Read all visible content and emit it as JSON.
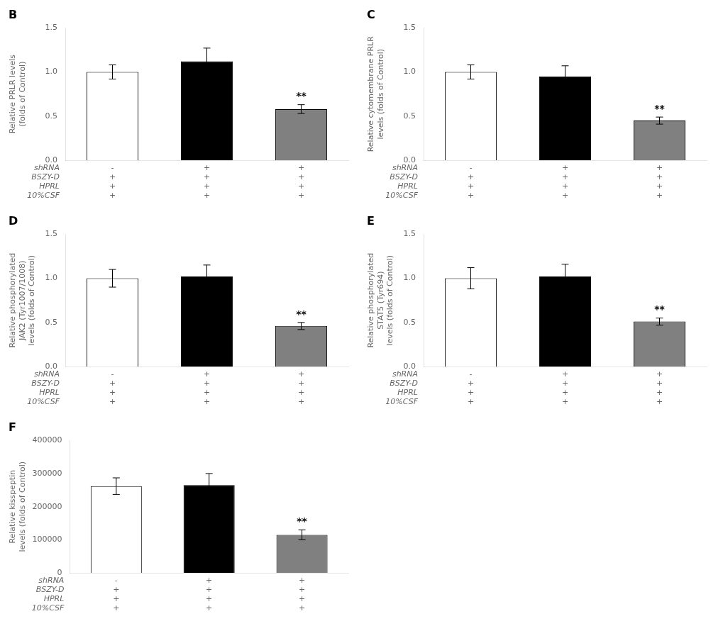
{
  "chart_data": [
    {
      "type": "bar",
      "title": "B",
      "categories": [
        [
          "-",
          "+",
          "+",
          "+"
        ],
        [
          "+",
          "+",
          "+",
          "+"
        ],
        [
          "+",
          "+",
          "+",
          "+"
        ]
      ],
      "row_labels": [
        "shRNA",
        "BSZY-D",
        "HPRL",
        "10%CSF"
      ],
      "values": [
        1.0,
        1.12,
        0.58
      ],
      "errors": [
        0.08,
        0.15,
        0.05
      ],
      "colors": [
        "white",
        "black",
        "#808080"
      ],
      "y_label": "Relative PRLR levels\n(folds of Control)",
      "ylim": [
        0,
        1.5
      ],
      "yticks": [
        {
          "value": 0,
          "label": "0.0"
        },
        0.5,
        {
          "value": 1,
          "label": "1.0"
        },
        1.5
      ],
      "annotations": [
        {
          "text": "**",
          "category": 2
        }
      ],
      "grid": false
    },
    {
      "type": "bar",
      "title": "C",
      "categories": [
        [
          "-",
          "+",
          "+",
          "+"
        ],
        [
          "+",
          "+",
          "+",
          "+"
        ],
        [
          "+",
          "+",
          "+",
          "+"
        ]
      ],
      "row_labels": [
        "shRNA",
        "BSZY-D",
        "HPRL",
        "10%CSF"
      ],
      "values": [
        1.0,
        0.95,
        0.45
      ],
      "errors": [
        0.08,
        0.12,
        0.04
      ],
      "colors": [
        "white",
        "black",
        "#808080"
      ],
      "y_label": "Relative cytomembrane PRLR\nlevels (folds of Control)",
      "ylim": [
        0,
        1.5
      ],
      "yticks": [
        {
          "value": 0,
          "label": "0.0"
        },
        0.5,
        {
          "value": 1,
          "label": "1.0"
        },
        1.5
      ],
      "annotations": [
        {
          "text": "**",
          "category": 2
        }
      ],
      "grid": false
    },
    {
      "type": "bar",
      "title": "D",
      "categories": [
        [
          "-",
          "+",
          "+",
          "+"
        ],
        [
          "+",
          "+",
          "+",
          "+"
        ],
        [
          "+",
          "+",
          "+",
          "+"
        ]
      ],
      "row_labels": [
        "shRNA",
        "BSZY-D",
        "HPRL",
        "10%CSF"
      ],
      "values": [
        1.0,
        1.02,
        0.46
      ],
      "errors": [
        0.1,
        0.13,
        0.04
      ],
      "colors": [
        "white",
        "black",
        "#808080"
      ],
      "y_label": "Relative phosphorylated\nJAK2 (Tyr1007/1008)\nlevels (folds of Control)",
      "ylim": [
        0,
        1.5
      ],
      "yticks": [
        {
          "value": 0,
          "label": "0.0"
        },
        0.5,
        {
          "value": 1,
          "label": "1.0"
        },
        1.5
      ],
      "annotations": [
        {
          "text": "**",
          "category": 2
        }
      ],
      "grid": false
    },
    {
      "type": "bar",
      "title": "E",
      "categories": [
        [
          "-",
          "+",
          "+",
          "+"
        ],
        [
          "+",
          "+",
          "+",
          "+"
        ],
        [
          "+",
          "+",
          "+",
          "+"
        ]
      ],
      "row_labels": [
        "shRNA",
        "BSZY-D",
        "HPRL",
        "10%CSF"
      ],
      "values": [
        1.0,
        1.02,
        0.51
      ],
      "errors": [
        0.12,
        0.14,
        0.04
      ],
      "colors": [
        "white",
        "black",
        "#808080"
      ],
      "y_label": "Relative phosphorylated\nSTAT5 (Tyr694)\nlevels (folds of Control)",
      "ylim": [
        0,
        1.5
      ],
      "yticks": [
        {
          "value": 0,
          "label": "0.0"
        },
        0.5,
        {
          "value": 1,
          "label": "1.0"
        },
        1.5
      ],
      "annotations": [
        {
          "text": "**",
          "category": 2
        }
      ],
      "grid": false
    },
    {
      "type": "bar",
      "title": "F",
      "categories": [
        [
          "-",
          "+",
          "+",
          "+"
        ],
        [
          "+",
          "+",
          "+",
          "+"
        ],
        [
          "+",
          "+",
          "+",
          "+"
        ]
      ],
      "row_labels": [
        "shRNA",
        "BSZY-D",
        "HPRL",
        "10%CSF"
      ],
      "values": [
        262000,
        265000,
        115000
      ],
      "errors": [
        25000,
        35000,
        15000
      ],
      "colors": [
        "white",
        "black",
        "#808080"
      ],
      "y_label": "Relative kisspeptin\nlevels (folds of Control)",
      "ylim": [
        0,
        400000
      ],
      "yticks": [
        0,
        100000,
        200000,
        300000,
        400000
      ],
      "annotations": [
        {
          "text": "**",
          "category": 2
        }
      ],
      "grid": false
    }
  ]
}
